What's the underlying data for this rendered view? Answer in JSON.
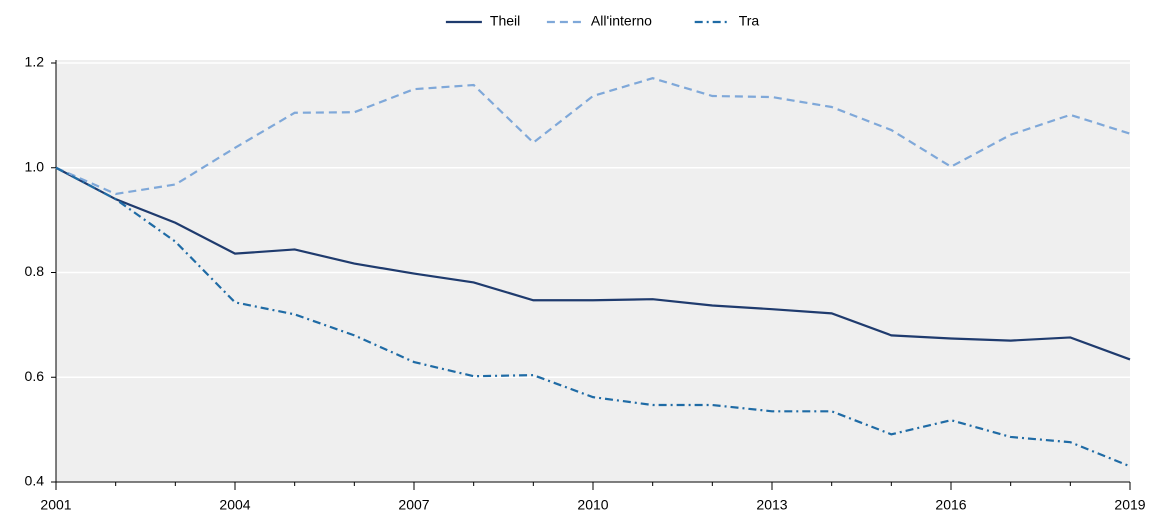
{
  "chart_data": {
    "type": "line",
    "x": [
      2001,
      2002,
      2003,
      2004,
      2005,
      2006,
      2007,
      2008,
      2009,
      2010,
      2011,
      2012,
      2013,
      2014,
      2015,
      2016,
      2017,
      2018,
      2019
    ],
    "series": [
      {
        "name": "Theil",
        "color": "#1f3b6e",
        "dash": "solid",
        "values": [
          1.0,
          0.94,
          0.895,
          0.836,
          0.844,
          0.817,
          0.798,
          0.781,
          0.747,
          0.747,
          0.749,
          0.737,
          0.73,
          0.722,
          0.68,
          0.674,
          0.67,
          0.676,
          0.634
        ]
      },
      {
        "name": "All'interno",
        "color": "#7fa8d9",
        "dash": "dashed",
        "values": [
          1.0,
          0.95,
          0.968,
          1.038,
          1.105,
          1.106,
          1.15,
          1.158,
          1.048,
          1.137,
          1.171,
          1.137,
          1.135,
          1.116,
          1.072,
          1.002,
          1.063,
          1.101,
          1.065
        ]
      },
      {
        "name": "Tra",
        "color": "#1f6ba5",
        "dash": "dashdot",
        "values": [
          1.0,
          0.94,
          0.859,
          0.743,
          0.72,
          0.68,
          0.629,
          0.602,
          0.604,
          0.562,
          0.547,
          0.547,
          0.535,
          0.535,
          0.491,
          0.518,
          0.486,
          0.476,
          0.43
        ]
      }
    ],
    "xlim": [
      2001,
      2019
    ],
    "xticks": [
      2001,
      2004,
      2007,
      2010,
      2013,
      2016,
      2019
    ],
    "ylim": [
      0.4,
      1.2
    ],
    "yticks": [
      0.4,
      0.6,
      0.8,
      {
        "value": 1,
        "label": "1.0"
      },
      1.2
    ],
    "grid": true,
    "legend": "top"
  }
}
